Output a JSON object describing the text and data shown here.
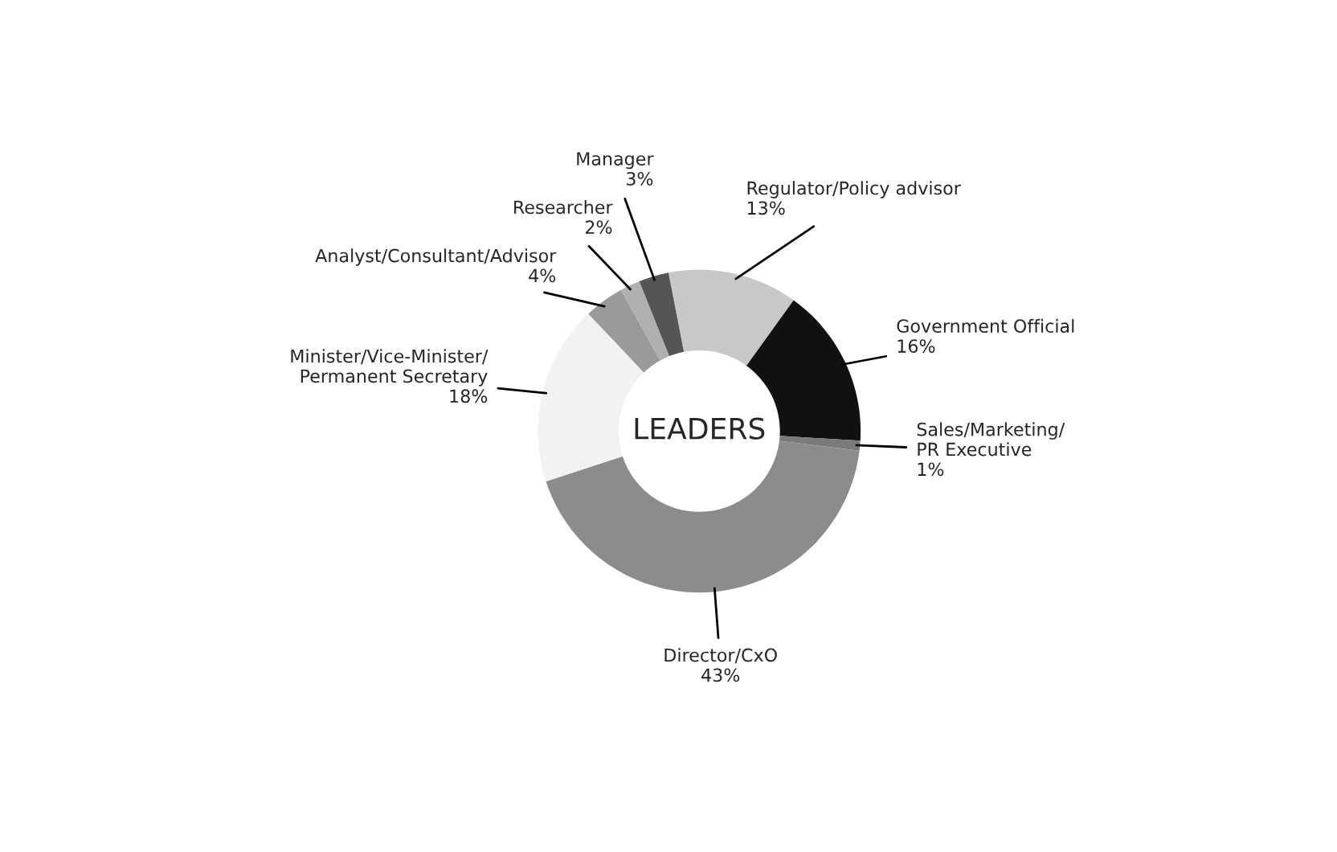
{
  "chart_data": {
    "type": "donut",
    "categories": [
      "Regulator/Policy advisor",
      "Government Official",
      "Sales/Marketing/\nPR Executive",
      "Director/CxO",
      "Minister/Vice-Minister/\nPermanent Secretary",
      "Analyst/Consultant/Advisor",
      "Researcher",
      "Manager"
    ],
    "values": [
      13,
      16,
      1,
      43,
      18,
      4,
      2,
      3
    ],
    "colors": [
      "#c8c8c8",
      "#111111",
      "#7a7a7a",
      "#8c8c8c",
      "#f2f2f2",
      "#9a9a9a",
      "#b0b0b0",
      "#555555"
    ],
    "value_labels": [
      "13%",
      "16%",
      "1%",
      "43%",
      "18%",
      "4%",
      "2%",
      "3%"
    ],
    "annotations": [
      "LEADERS"
    ]
  }
}
